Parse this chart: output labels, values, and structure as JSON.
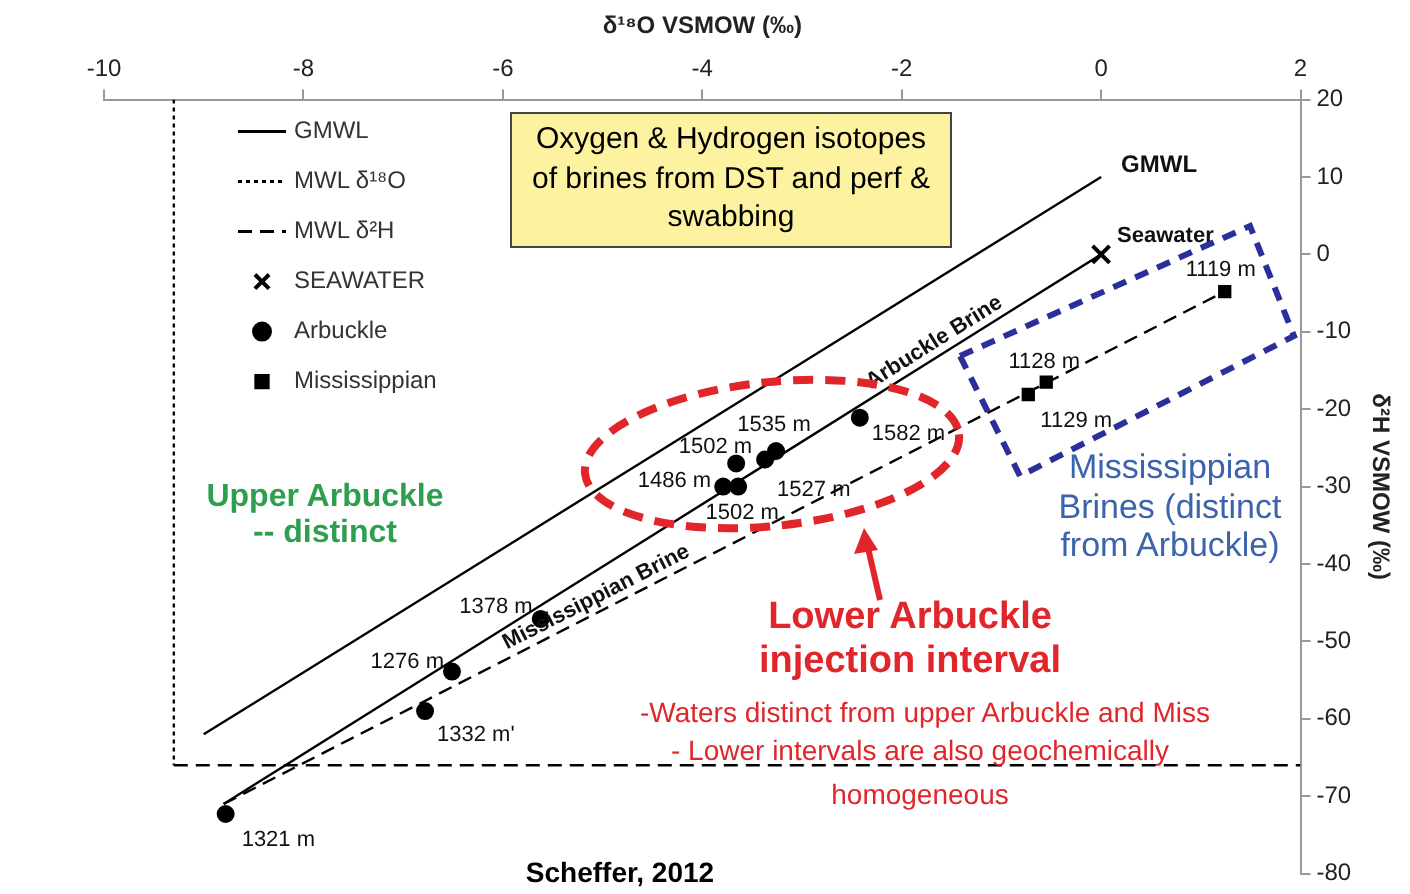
{
  "chart_data": {
    "type": "scatter",
    "xlabel": "δ¹⁸O VSMOW (‰)",
    "ylabel": "δ²H VSMOW (‰)",
    "xlim": [
      -10,
      2
    ],
    "xticks": [
      -10,
      -8,
      -6,
      -4,
      -2,
      0,
      2
    ],
    "ylim": [
      -80,
      20
    ],
    "yticks": [
      -80,
      -70,
      -60,
      -50,
      -40,
      -30,
      -20,
      -10,
      0,
      10,
      20
    ],
    "grid": false,
    "legend": "top left",
    "series": [
      {
        "name": "GMWL",
        "type": "line",
        "color": "#000000",
        "x": [
          -9,
          0
        ],
        "values": [
          -62,
          10
        ],
        "line_style": "solid",
        "marker": "none"
      },
      {
        "name": "MWL δ¹⁸O",
        "type": "line",
        "color": "#000000",
        "x": [
          -9.3,
          -9.3
        ],
        "values": [
          20,
          -66
        ],
        "line_style": "dotted",
        "marker": "none"
      },
      {
        "name": "MWL δ²H",
        "type": "line",
        "color": "#000000",
        "x": [
          -9.3,
          2
        ],
        "values": [
          -66,
          -66
        ],
        "line_style": "dashed",
        "marker": "none"
      },
      {
        "name": "SEAWATER",
        "type": "scatter",
        "color": "#000000",
        "x": [
          0
        ],
        "values": [
          0
        ],
        "marker": "cross"
      },
      {
        "name": "Arbuckle",
        "type": "scatter",
        "color": "#000000",
        "x": [
          -8.78,
          -6.78,
          -6.51,
          -5.62,
          -3.66,
          -3.79,
          -3.64,
          -3.26,
          -3.37,
          -2.42
        ],
        "values": [
          -72.3,
          -59,
          -53.9,
          -47.1,
          -27,
          -30,
          -30,
          -25.4,
          -26.5,
          -21.1
        ],
        "marker": "circle"
      },
      {
        "name": "Mississippian",
        "type": "scatter",
        "color": "#000000",
        "x": [
          -0.55,
          -0.73,
          1.24
        ],
        "values": [
          -16.5,
          -18.1,
          -4.8
        ],
        "marker": "square"
      },
      {
        "type": "line",
        "color": "#000000",
        "x": [
          -8.8,
          0
        ],
        "values": [
          -71,
          0
        ],
        "line_style": "solid",
        "marker": "none"
      },
      {
        "type": "line",
        "color": "#000000",
        "x": [
          -8.8,
          1.24
        ],
        "values": [
          -71,
          -4.8
        ],
        "line_style": "dashed",
        "marker": "none"
      }
    ],
    "annotations": [
      {
        "text": "GMWL",
        "x": 0,
        "y": 10
      },
      {
        "text": "Seawater",
        "x": 0,
        "y": 0
      },
      {
        "text": "Arbuckle Brine",
        "x": -1.6,
        "y": -12.9
      },
      {
        "text": "Mississippian Brine",
        "x": -5,
        "y": -45.9
      },
      {
        "text": "1321 m",
        "x": -8.78,
        "y": -72.3
      },
      {
        "text": "1332 m'",
        "x": -6.78,
        "y": -59
      },
      {
        "text": "1276 m",
        "x": -6.51,
        "y": -53.9
      },
      {
        "text": "1378 m",
        "x": -5.62,
        "y": -47.1
      },
      {
        "text": "1502 m",
        "x": -3.66,
        "y": -27
      },
      {
        "text": "1486 m",
        "x": -3.79,
        "y": -30
      },
      {
        "text": "1502 m",
        "x": -3.64,
        "y": -30
      },
      {
        "text": "1535 m",
        "x": -3.26,
        "y": -25.4
      },
      {
        "text": "1527 m",
        "x": -3.37,
        "y": -26.5
      },
      {
        "text": "1582 m",
        "x": -2.42,
        "y": -21.1
      },
      {
        "text": "1128 m",
        "x": -0.55,
        "y": -16.5
      },
      {
        "text": "1129 m",
        "x": -0.73,
        "y": -18.1
      },
      {
        "text": "1119 m",
        "x": 1.24,
        "y": -4.8
      },
      "Oxygen & Hydrogen isotopes of brines from DST and perf & swabbing",
      "Upper Arbuckle -- distinct",
      "Lower Arbuckle injection interval",
      "-Waters distinct from upper Arbuckle and Miss",
      "- Lower intervals are also geochemically homogeneous",
      "Mississippian Brines (distinct from Arbuckle)",
      "Scheffer, 2012"
    ]
  }
}
